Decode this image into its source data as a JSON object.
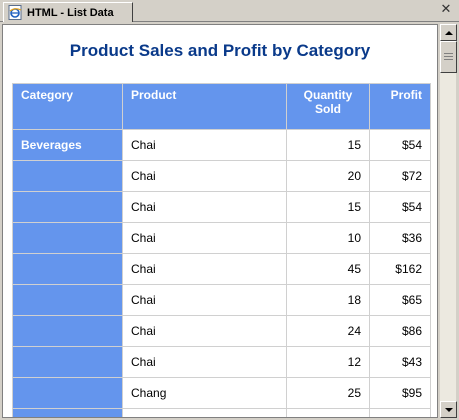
{
  "tab": {
    "label": "HTML - List Data",
    "icon": "ie-page-icon"
  },
  "report": {
    "title": "Product Sales and Profit by Category",
    "headers": {
      "category": "Category",
      "product": "Product",
      "quantity": "Quantity Sold",
      "profit": "Profit"
    },
    "rows": [
      {
        "category": "Beverages",
        "product": "Chai",
        "quantity": "15",
        "profit": "$54"
      },
      {
        "category": "",
        "product": "Chai",
        "quantity": "20",
        "profit": "$72"
      },
      {
        "category": "",
        "product": "Chai",
        "quantity": "15",
        "profit": "$54"
      },
      {
        "category": "",
        "product": "Chai",
        "quantity": "10",
        "profit": "$36"
      },
      {
        "category": "",
        "product": "Chai",
        "quantity": "45",
        "profit": "$162"
      },
      {
        "category": "",
        "product": "Chai",
        "quantity": "18",
        "profit": "$65"
      },
      {
        "category": "",
        "product": "Chai",
        "quantity": "24",
        "profit": "$86"
      },
      {
        "category": "",
        "product": "Chai",
        "quantity": "12",
        "profit": "$43"
      },
      {
        "category": "",
        "product": "Chang",
        "quantity": "25",
        "profit": "$95"
      }
    ]
  },
  "colors": {
    "header_bg": "#6495ed",
    "title": "#0a3a8a"
  }
}
